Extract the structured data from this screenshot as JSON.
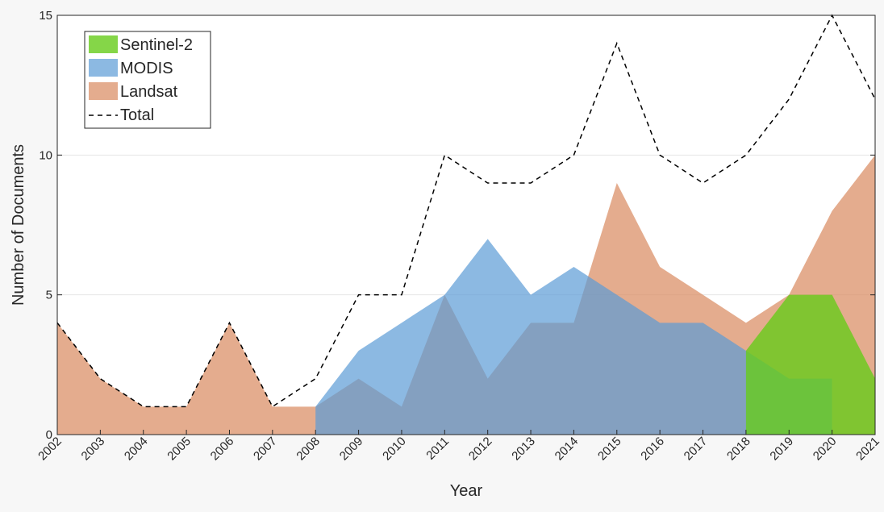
{
  "chart_data": {
    "type": "area",
    "title": "",
    "xlabel": "Year",
    "ylabel": "Number of Documents",
    "categories": [
      "2002",
      "2003",
      "2004",
      "2005",
      "2006",
      "2007",
      "2008",
      "2009",
      "2010",
      "2011",
      "2012",
      "2013",
      "2014",
      "2015",
      "2016",
      "2017",
      "2018",
      "2019",
      "2020",
      "2021"
    ],
    "ylim": [
      0,
      15
    ],
    "yticks": [
      0,
      5,
      10,
      15
    ],
    "grid": "horizontal",
    "legend_position": "top-left",
    "series": [
      {
        "name": "Sentinel-2",
        "kind": "area",
        "color": "#66cc1a",
        "opacity": 0.8,
        "values": [
          null,
          null,
          null,
          null,
          null,
          null,
          null,
          null,
          null,
          null,
          null,
          null,
          null,
          null,
          null,
          null,
          3,
          5,
          5,
          2
        ]
      },
      {
        "name": "MODIS",
        "kind": "area",
        "color": "#5b9bd5",
        "opacity": 0.7,
        "values": [
          null,
          null,
          null,
          null,
          null,
          null,
          1,
          3,
          4,
          5,
          7,
          5,
          6,
          5,
          4,
          4,
          3,
          2,
          2,
          null
        ]
      },
      {
        "name": "Landsat",
        "kind": "area",
        "color": "#d9895e",
        "opacity": 0.7,
        "values": [
          4,
          2,
          1,
          1,
          4,
          1,
          1,
          2,
          1,
          5,
          2,
          4,
          4,
          9,
          6,
          5,
          4,
          5,
          8,
          10
        ]
      },
      {
        "name": "Total",
        "kind": "line",
        "color": "#000000",
        "dash": "dashed",
        "values": [
          4,
          2,
          1,
          1,
          4,
          1,
          2,
          5,
          5,
          10,
          9,
          9,
          10,
          14,
          10,
          9,
          10,
          12,
          15,
          12
        ]
      }
    ]
  }
}
